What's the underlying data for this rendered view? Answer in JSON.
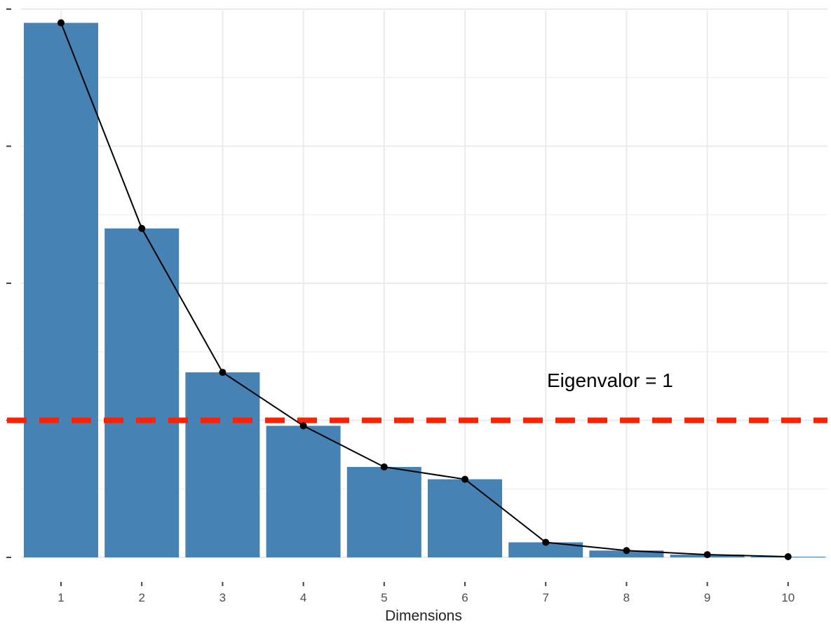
{
  "chart_data": {
    "type": "bar",
    "xlabel": "Dimensions",
    "ylabel": "",
    "categories": [
      "1",
      "2",
      "3",
      "4",
      "5",
      "6",
      "7",
      "8",
      "9",
      "10"
    ],
    "values": [
      3.9,
      2.4,
      1.35,
      0.96,
      0.66,
      0.57,
      0.11,
      0.05,
      0.02,
      0.005
    ],
    "ylim": [
      0,
      4
    ],
    "yticks": [
      0,
      1,
      2,
      3,
      4
    ],
    "grid": true,
    "line_overlay": true,
    "threshold": {
      "value": 1,
      "label": "Eigenvalor = 1",
      "color": "#ff2200",
      "style": "dashed"
    },
    "colors": {
      "bar": "#4682b4",
      "line": "#000000",
      "grid": "#ebebeb",
      "background": "#ffffff"
    }
  }
}
